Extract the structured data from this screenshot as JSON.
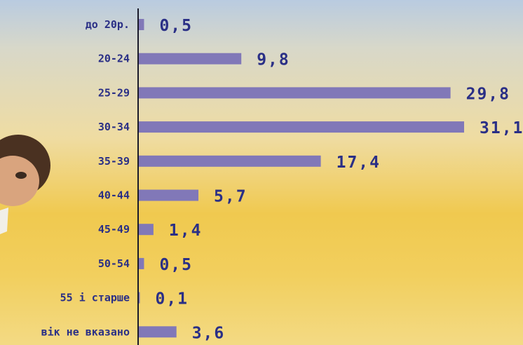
{
  "colors": {
    "bar": "#8178b8",
    "text": "#2a2f86",
    "axis": "#1a1a2a"
  },
  "chart_data": {
    "type": "bar",
    "orientation": "horizontal",
    "categories": [
      "до 20р.",
      "20-24",
      "25-29",
      "30-34",
      "35-39",
      "40-44",
      "45-49",
      "50-54",
      "55 і старше",
      "вік не вказано"
    ],
    "values": [
      0.5,
      9.8,
      29.8,
      31.1,
      17.4,
      5.7,
      1.4,
      0.5,
      0.1,
      3.6
    ],
    "value_labels": [
      "0,5",
      "9,8",
      "29,8",
      "31,1",
      "17,4",
      "5,7",
      "1,4",
      "0,5",
      "0,1",
      "3,6"
    ],
    "xlim": [
      0,
      31.1
    ],
    "grid": false,
    "legend": "none"
  }
}
